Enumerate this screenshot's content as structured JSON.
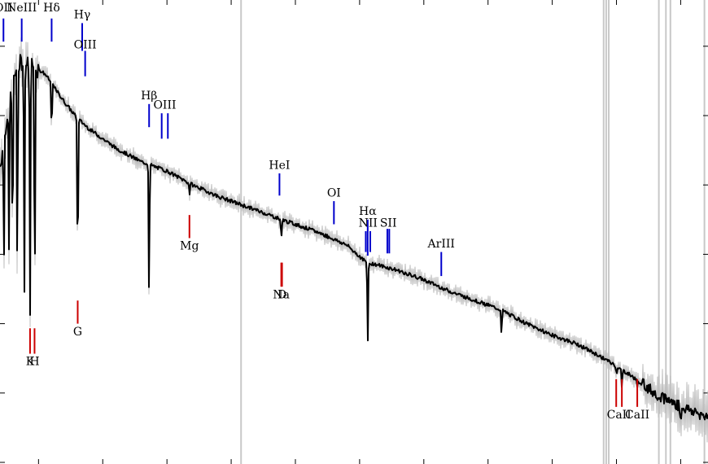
{
  "chart_data": {
    "type": "line",
    "title": "",
    "xlabel": "",
    "ylabel": "",
    "xlim": [
      3700,
      9200
    ],
    "ylim": [
      0,
      1
    ],
    "grid": false,
    "legend": "none",
    "colors": {
      "spectrum": "#000000",
      "noise": "#bdbdbd",
      "emission": "#0000cc",
      "absorption": "#cc0000",
      "bad_pixel": "#c8c8c8"
    },
    "spectrum_nodes": {
      "x": [
        3700,
        3730,
        3760,
        3790,
        3800,
        3850,
        3880,
        3900,
        3950,
        4000,
        4050,
        4100,
        4200,
        4300,
        4400,
        4500,
        4600,
        4700,
        4800,
        4861,
        4900,
        5000,
        5100,
        5200,
        5400,
        5600,
        5800,
        5890,
        6000,
        6200,
        6400,
        6563,
        6600,
        6800,
        7000,
        7200,
        7400,
        7600,
        7800,
        8000,
        8200,
        8400,
        8600,
        8800,
        9000,
        9200
      ],
      "y": [
        0.64,
        0.7,
        0.76,
        0.8,
        0.83,
        0.86,
        0.87,
        0.86,
        0.86,
        0.85,
        0.84,
        0.82,
        0.78,
        0.745,
        0.72,
        0.7,
        0.68,
        0.665,
        0.65,
        0.645,
        0.64,
        0.63,
        0.615,
        0.6,
        0.575,
        0.555,
        0.535,
        0.525,
        0.515,
        0.495,
        0.47,
        0.43,
        0.43,
        0.415,
        0.395,
        0.37,
        0.35,
        0.33,
        0.3,
        0.275,
        0.255,
        0.225,
        0.19,
        0.15,
        0.12,
        0.1
      ]
    },
    "absorption_dips": [
      {
        "x": 3730,
        "y": 0.42
      },
      {
        "x": 3770,
        "y": 0.44
      },
      {
        "x": 3798,
        "y": 0.41
      },
      {
        "x": 3835,
        "y": 0.38
      },
      {
        "x": 3889,
        "y": 0.36
      },
      {
        "x": 3934,
        "y": 0.3
      },
      {
        "x": 3970,
        "y": 0.33
      },
      {
        "x": 4102,
        "y": 0.71
      },
      {
        "x": 4305,
        "y": 0.38
      },
      {
        "x": 4861,
        "y": 0.35
      },
      {
        "x": 5175,
        "y": 0.58
      },
      {
        "x": 5890,
        "y": 0.48
      },
      {
        "x": 6563,
        "y": 0.25
      },
      {
        "x": 6870,
        "y": 0.4
      },
      {
        "x": 7605,
        "y": 0.27
      },
      {
        "x": 8500,
        "y": 0.19
      },
      {
        "x": 8542,
        "y": 0.16
      },
      {
        "x": 8662,
        "y": 0.16
      },
      {
        "x": 9000,
        "y": 0.08
      }
    ],
    "bad_pixel_columns": [
      5577,
      8400,
      8420,
      8440,
      8830,
      8885,
      8920,
      9185
    ],
    "emission_lines": [
      {
        "label": "OII",
        "x": 3727,
        "top": 0.96,
        "bottom": 0.91,
        "label_y": 0.975
      },
      {
        "label": "NeIII",
        "x": 3869,
        "top": 0.96,
        "bottom": 0.91,
        "label_y": 0.975
      },
      {
        "label": "Hδ",
        "x": 4102,
        "top": 0.96,
        "bottom": 0.91,
        "label_y": 0.975
      },
      {
        "label": "Hγ",
        "x": 4340,
        "top": 0.95,
        "bottom": 0.89,
        "label_y": 0.96
      },
      {
        "label": "OIII",
        "x": 4363,
        "top": 0.89,
        "bottom": 0.835,
        "label_y": 0.895
      },
      {
        "label": "Hβ",
        "x": 4861,
        "top": 0.775,
        "bottom": 0.725,
        "label_y": 0.785
      },
      {
        "label": "OIII",
        "x": 4959,
        "top": 0.755,
        "bottom": 0.7,
        "label_y": 0.765
      },
      {
        "label": "OIII",
        "x": 5007,
        "top": 0.755,
        "bottom": 0.7,
        "label_y": 0.765
      },
      {
        "label": "HeI",
        "x": 5876,
        "top": 0.625,
        "bottom": 0.577,
        "label_y": 0.635
      },
      {
        "label": "OI",
        "x": 6300,
        "top": 0.565,
        "bottom": 0.515,
        "label_y": 0.575
      },
      {
        "label": "NII",
        "x": 6548,
        "top": 0.5,
        "bottom": 0.455,
        "label_y": 0.51
      },
      {
        "label": "Hα",
        "x": 6563,
        "top": 0.525,
        "bottom": 0.447,
        "label_y": 0.535
      },
      {
        "label": "NII",
        "x": 6583,
        "top": 0.5,
        "bottom": 0.455,
        "label_y": 0.51
      },
      {
        "label": "SII",
        "x": 6716,
        "top": 0.505,
        "bottom": 0.452,
        "label_y": 0.51
      },
      {
        "label": "SII",
        "x": 6731,
        "top": 0.505,
        "bottom": 0.452,
        "label_y": 0.51
      },
      {
        "label": "ArIII",
        "x": 7136,
        "top": 0.455,
        "bottom": 0.403,
        "label_y": 0.465
      }
    ],
    "absorption_lines": [
      {
        "label": "K",
        "x": 3934,
        "top": 0.29,
        "bottom": 0.235,
        "label_y": 0.21
      },
      {
        "label": "H",
        "x": 3969,
        "top": 0.29,
        "bottom": 0.235,
        "label_y": 0.21
      },
      {
        "label": "G",
        "x": 4305,
        "top": 0.35,
        "bottom": 0.3,
        "label_y": 0.275
      },
      {
        "label": "Mg",
        "x": 5175,
        "top": 0.535,
        "bottom": 0.485,
        "label_y": 0.46
      },
      {
        "label": "Na",
        "x": 5890,
        "top": 0.432,
        "bottom": 0.38,
        "label_y": 0.355
      },
      {
        "label": "D",
        "x": 5896,
        "top": 0.432,
        "bottom": 0.38,
        "label_y": 0.355
      },
      {
        "label": "CaII",
        "x": 8498,
        "top": 0.18,
        "bottom": 0.12,
        "label_y": 0.095
      },
      {
        "label": "CaII",
        "x": 8542,
        "top": 0.18,
        "bottom": 0.12,
        "label_y": 0.095
      },
      {
        "label": "CaII",
        "x": 8662,
        "top": 0.18,
        "bottom": 0.12,
        "label_y": 0.095
      }
    ]
  }
}
